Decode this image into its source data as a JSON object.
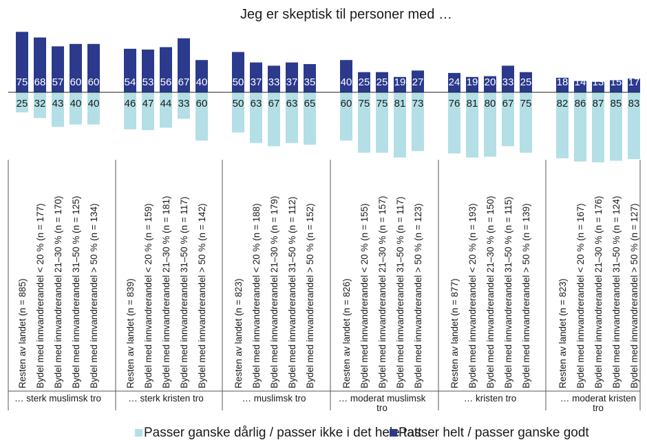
{
  "chart_data": {
    "type": "bar",
    "title": "Jeg er skeptisk til personer med …",
    "colors": {
      "positive": "#2b3a8c",
      "negative": "#b4dfe6"
    },
    "legend": [
      {
        "label": "Passer ganske dårlig / passer ikke i det hele tatt",
        "color": "#b4dfe6"
      },
      {
        "label": "Passer helt / passer ganske godt",
        "color": "#2b3a8c"
      }
    ],
    "legend_position": "bottom",
    "groups": [
      {
        "label": "… sterk muslimsk tro",
        "categories": [
          "Resten av landet (n = 885)",
          "Bydel med innvandrerandel < 20 % (n = 177)",
          "Bydel med innvandrerandel 21–30 % (n = 170)",
          "Bydel med innvandrerandel 31–50 % (n = 125)",
          "Bydel med innvandrerandel > 50 % (n = 134)"
        ],
        "passer": [
          75,
          68,
          57,
          60,
          60
        ],
        "passer_ikke": [
          25,
          32,
          43,
          40,
          40
        ]
      },
      {
        "label": "… sterk kristen tro",
        "categories": [
          "Resten av landet (n = 839)",
          "Bydel med innvandrerandel < 20 % (n = 159)",
          "Bydel med innvandrerandel 21–30 % (n = 181)",
          "Bydel med innvandrerandel 31–50 % (n = 117)",
          "Bydel med innvandrerandel > 50 % (n = 142)"
        ],
        "passer": [
          54,
          53,
          56,
          67,
          40
        ],
        "passer_ikke": [
          46,
          47,
          44,
          33,
          60
        ]
      },
      {
        "label": "… muslimsk tro",
        "categories": [
          "Resten av landet (n = 823)",
          "Bydel med innvandrerandel < 20 % (n = 188)",
          "Bydel med innvandrerandel 21–30 % (n = 179)",
          "Bydel med innvandrerandel 31–50 % (n = 112)",
          "Bydel med innvandrerandel > 50 % (n = 152)"
        ],
        "passer": [
          50,
          37,
          33,
          37,
          35
        ],
        "passer_ikke": [
          50,
          63,
          67,
          63,
          65
        ]
      },
      {
        "label": "… moderat muslimsk tro",
        "categories": [
          "Resten av landet (n = 826)",
          "Bydel med innvandrerandel < 20 % (n = 155)",
          "Bydel med innvandrerandel 21–30 % (n = 157)",
          "Bydel med innvandrerandel 31–50 % (n = 117)",
          "Bydel med innvandrerandel > 50 % (n = 123)"
        ],
        "passer": [
          40,
          25,
          25,
          19,
          27
        ],
        "passer_ikke": [
          60,
          75,
          75,
          81,
          73
        ]
      },
      {
        "label": "… kristen tro",
        "categories": [
          "Resten av landet (n = 877)",
          "Bydel med innvandrerandel < 20 % (n = 193)",
          "Bydel med innvandrerandel 21–30 % (n = 150)",
          "Bydel med innvandrerandel 31–50 % (n = 115)",
          "Bydel med innvandrerandel > 50 % (n = 139)"
        ],
        "passer": [
          24,
          19,
          20,
          33,
          25
        ],
        "passer_ikke": [
          76,
          81,
          80,
          67,
          75
        ]
      },
      {
        "label": "… moderat kristen tro",
        "categories": [
          "Resten av landet (n = 823)",
          "Bydel med innvandrerandel < 20 % (n = 167)",
          "Bydel med innvandrerandel 21–30 % (n = 176)",
          "Bydel med innvandrerandel 31–50 % (n = 124)",
          "Bydel med innvandrerandel > 50 % (n = 127)"
        ],
        "passer": [
          18,
          14,
          13,
          15,
          17
        ],
        "passer_ikke": [
          82,
          86,
          87,
          85,
          83
        ]
      }
    ]
  }
}
